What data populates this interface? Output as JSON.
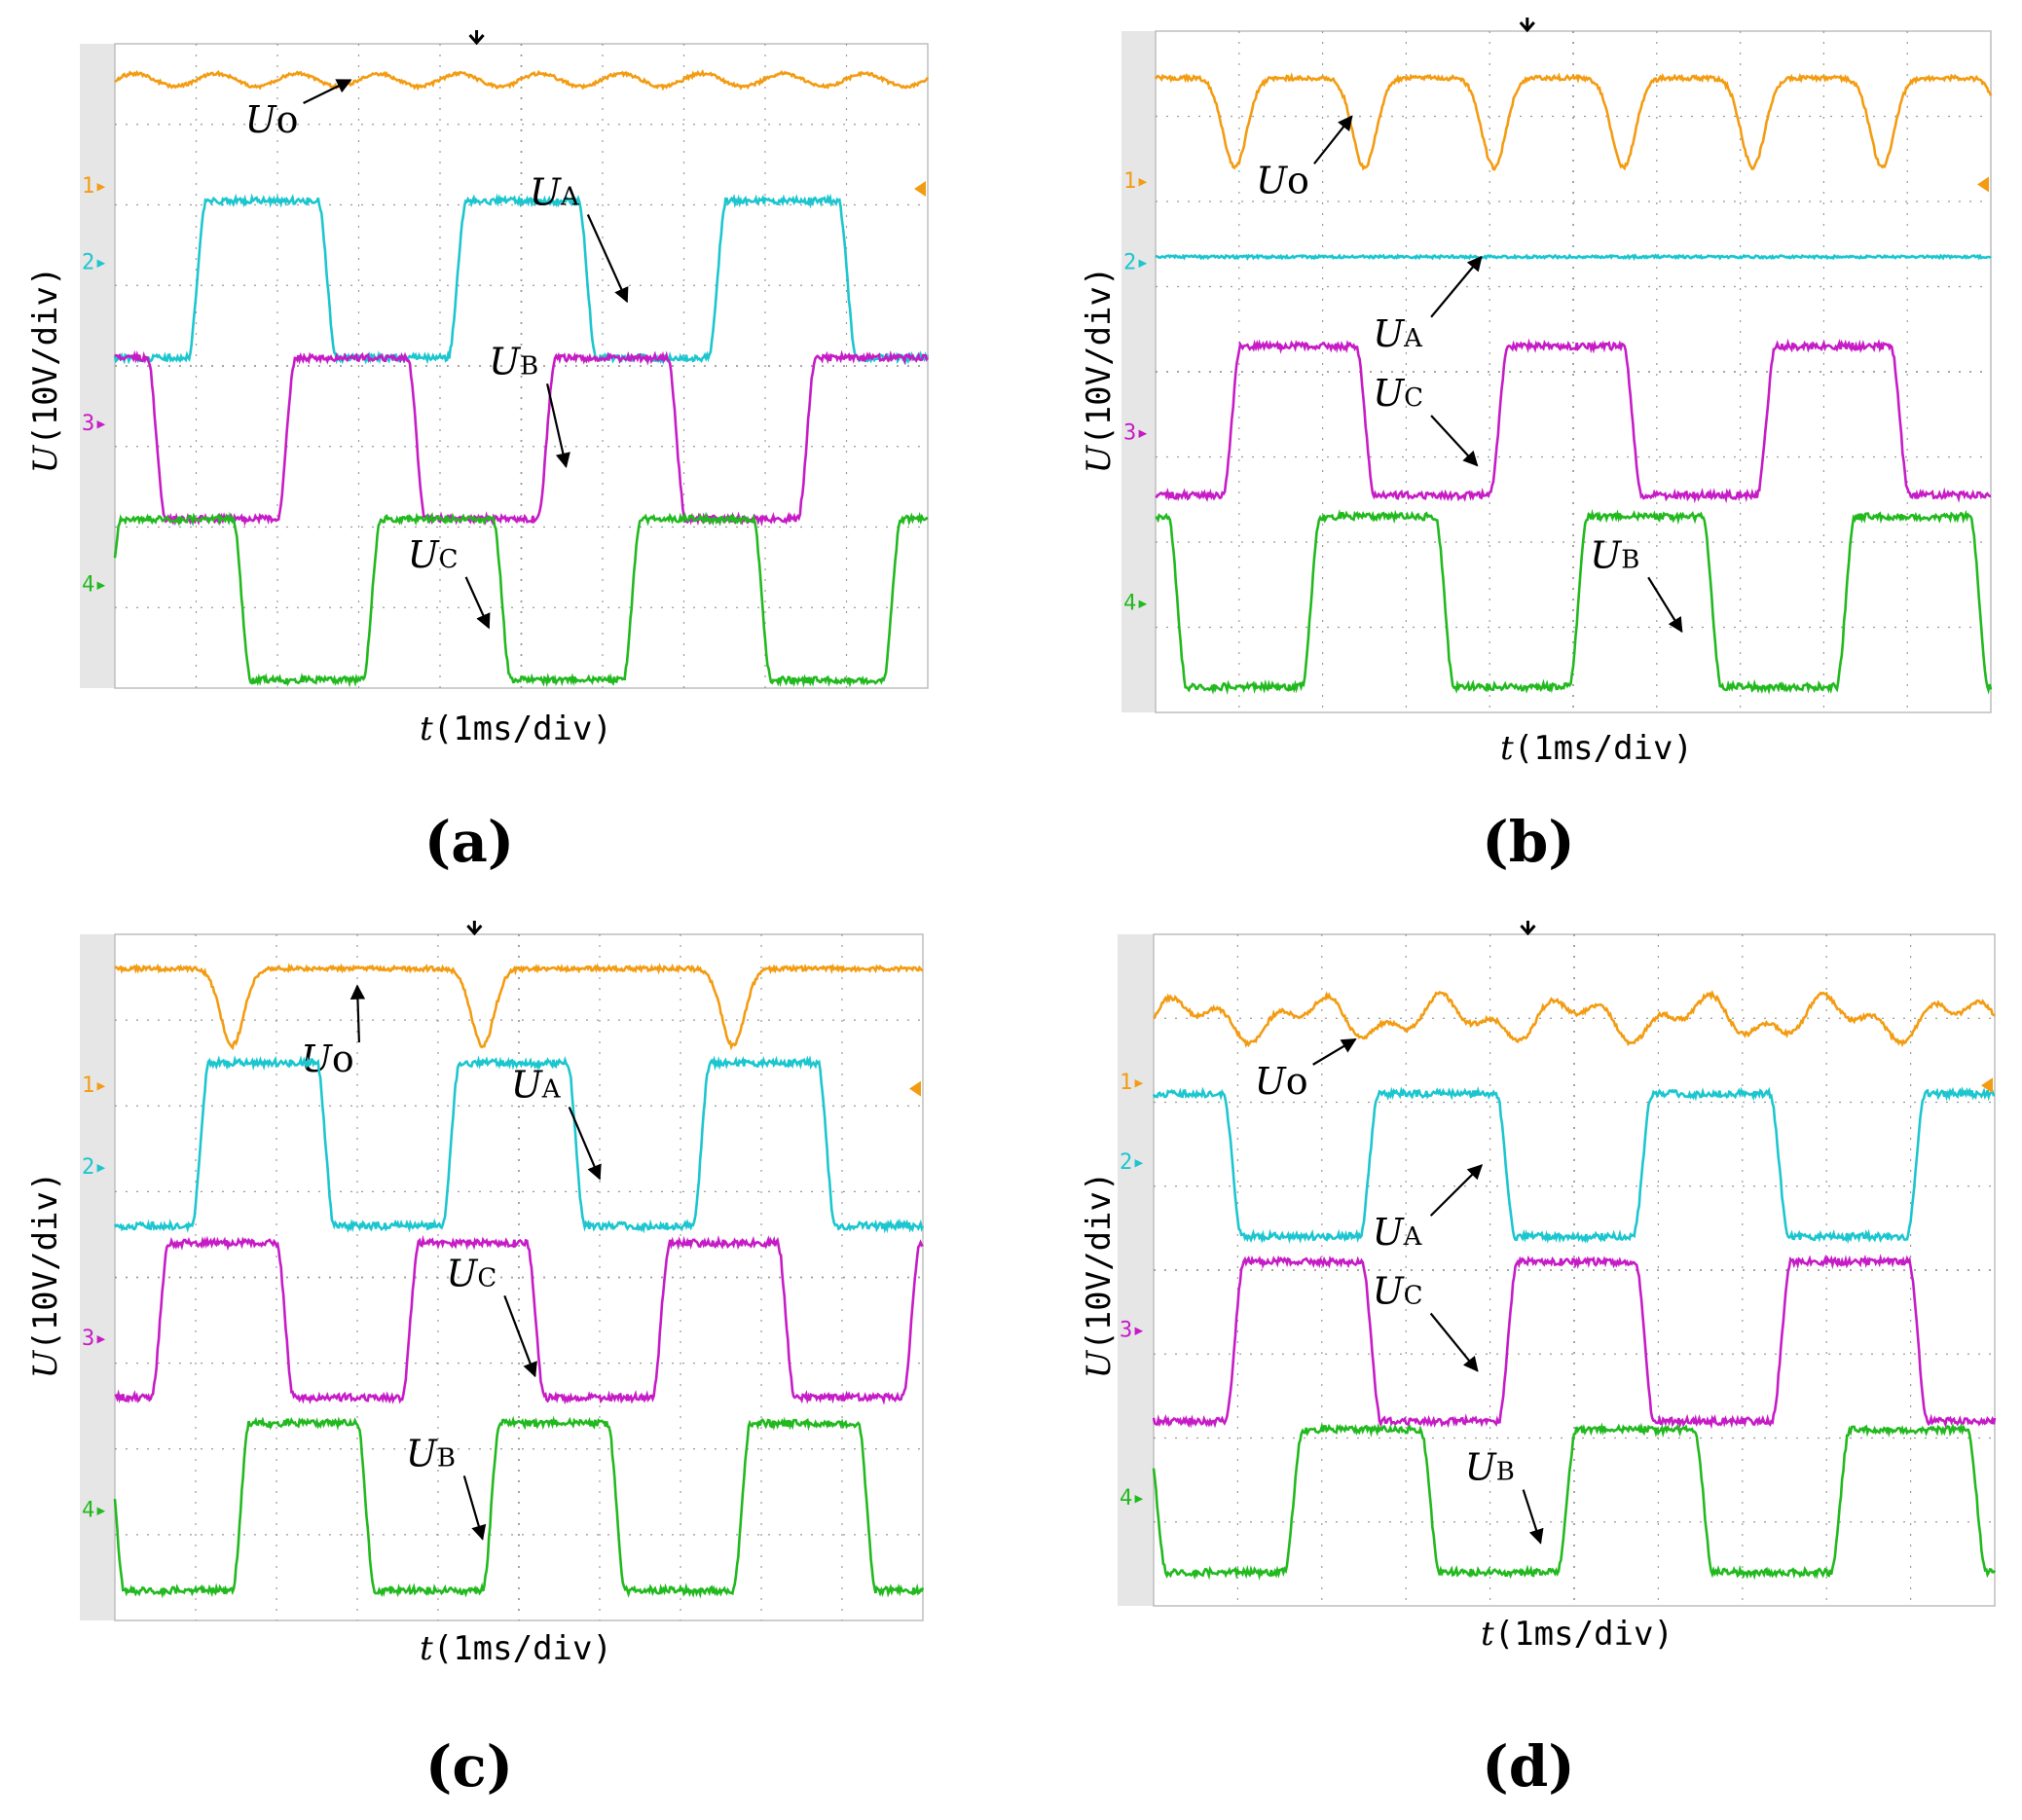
{
  "figure": {
    "panels": [
      "a",
      "b",
      "c",
      "d"
    ]
  },
  "colors": {
    "ch1": "#f39c12",
    "ch2": "#1cc6cf",
    "ch3": "#c61cc6",
    "ch4": "#22b91f",
    "grid": "#9a9a9a",
    "bezel": "#e6e6e6",
    "arrow": "#000000"
  },
  "chart_data": [
    {
      "panel": "a",
      "type": "line",
      "title": "",
      "caption": "(a)",
      "xlabel_var": "t",
      "xlabel_unit": "(1ms/div)",
      "ylabel_var": "U",
      "ylabel_unit": "(10V/div)",
      "x_divisions": 10,
      "y_divisions": 8,
      "xlim": [
        0,
        10
      ],
      "ylim": [
        0,
        8
      ],
      "channel_markers": [
        "1",
        "2",
        "3",
        "4"
      ],
      "series": [
        {
          "name": "Uo",
          "channel": 1,
          "label": "Uo",
          "baseline": 7.55,
          "kind": "dc"
        },
        {
          "name": "UA",
          "channel": 2,
          "label": "UA",
          "kind": "square",
          "hi": 6.05,
          "lo": 4.1,
          "period": 3.2,
          "phase": 0.9
        },
        {
          "name": "UB",
          "channel": 3,
          "label": "UB",
          "kind": "square",
          "hi": 4.1,
          "lo": 2.1,
          "period": 3.2,
          "phase": 2.0
        },
        {
          "name": "UC",
          "channel": 4,
          "label": "UC",
          "kind": "square",
          "hi": 2.1,
          "lo": 0.1,
          "period": 3.2,
          "phase": 3.05
        }
      ]
    },
    {
      "panel": "b",
      "type": "line",
      "title": "",
      "caption": "(b)",
      "xlabel_var": "t",
      "xlabel_unit": "(1ms/div)",
      "ylabel_var": "U",
      "ylabel_unit": "(10V/div)",
      "x_divisions": 10,
      "y_divisions": 8,
      "xlim": [
        0,
        10
      ],
      "ylim": [
        0,
        8
      ],
      "channel_markers": [
        "1",
        "2",
        "3",
        "4"
      ],
      "series": [
        {
          "name": "Uo",
          "channel": 1,
          "label": "Uo",
          "baseline": 7.45,
          "kind": "dips",
          "dip_to": 6.4,
          "period": 1.55,
          "phase": 0.95
        },
        {
          "name": "UA",
          "channel": 2,
          "label": "UA",
          "baseline": 5.35,
          "kind": "flat"
        },
        {
          "name": "UC",
          "channel": 3,
          "label": "UC",
          "kind": "square",
          "hi": 4.3,
          "lo": 2.55,
          "period": 3.2,
          "phase": 0.8
        },
        {
          "name": "UB",
          "channel": 4,
          "label": "UB",
          "kind": "square",
          "hi": 2.3,
          "lo": 0.3,
          "period": 3.2,
          "phase": 1.75
        }
      ]
    },
    {
      "panel": "c",
      "type": "line",
      "title": "",
      "caption": "(c)",
      "xlabel_var": "t",
      "xlabel_unit": "(1ms/div)",
      "ylabel_var": "U",
      "ylabel_unit": "(10V/div)",
      "x_divisions": 10,
      "y_divisions": 8,
      "xlim": [
        0,
        10
      ],
      "ylim": [
        0,
        8
      ],
      "channel_markers": [
        "1",
        "2",
        "3",
        "4"
      ],
      "series": [
        {
          "name": "Uo",
          "channel": 1,
          "label": "Uo",
          "baseline": 7.6,
          "kind": "dips",
          "dip_to": 6.7,
          "period": 3.1,
          "phase": 1.45
        },
        {
          "name": "UA",
          "channel": 2,
          "label": "UA",
          "kind": "square",
          "hi": 6.5,
          "lo": 4.6,
          "period": 3.1,
          "phase": 0.95
        },
        {
          "name": "UC",
          "channel": 3,
          "label": "UC",
          "kind": "square",
          "hi": 4.4,
          "lo": 2.6,
          "period": 3.1,
          "phase": 0.45
        },
        {
          "name": "UB",
          "channel": 4,
          "label": "UB",
          "kind": "square",
          "hi": 2.3,
          "lo": 0.35,
          "period": 3.1,
          "phase": 1.45
        }
      ]
    },
    {
      "panel": "d",
      "type": "line",
      "title": "",
      "caption": "(d)",
      "xlabel_var": "t",
      "xlabel_unit": "(1ms/div)",
      "ylabel_var": "U",
      "ylabel_unit": "(10V/div)",
      "x_divisions": 10,
      "y_divisions": 8,
      "xlim": [
        0,
        10
      ],
      "ylim": [
        0,
        8
      ],
      "channel_markers": [
        "1",
        "2",
        "3",
        "4"
      ],
      "series": [
        {
          "name": "Uo",
          "channel": 1,
          "label": "Uo",
          "baseline": 7.0,
          "kind": "ripple"
        },
        {
          "name": "UA",
          "channel": 2,
          "label": "UA",
          "kind": "square",
          "hi": 6.1,
          "lo": 4.4,
          "period": 3.25,
          "phase": 2.45
        },
        {
          "name": "UC",
          "channel": 3,
          "label": "UC",
          "kind": "square",
          "hi": 4.1,
          "lo": 2.2,
          "period": 3.25,
          "phase": 0.85
        },
        {
          "name": "UB",
          "channel": 4,
          "label": "UB",
          "kind": "square",
          "hi": 2.1,
          "lo": 0.4,
          "period": 3.25,
          "phase": 1.55
        }
      ]
    }
  ]
}
